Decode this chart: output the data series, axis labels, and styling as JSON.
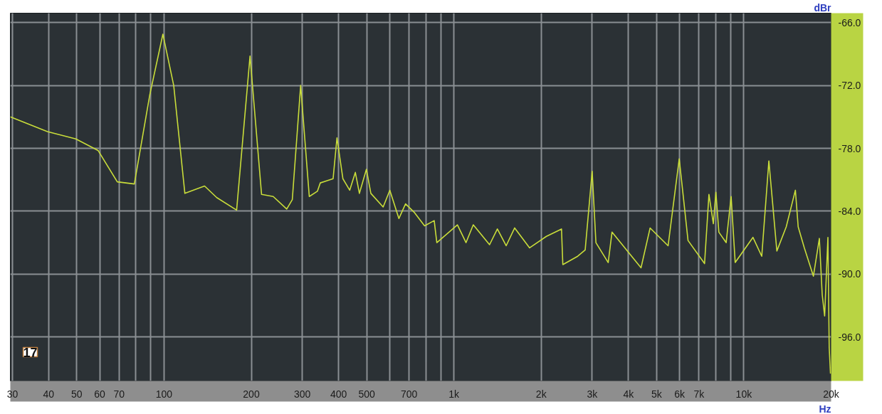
{
  "chart_data": {
    "type": "line",
    "xlabel": "Hz",
    "ylabel": "dBr",
    "annotations": [
      "17"
    ],
    "log": "x",
    "grid": true,
    "marker": "none",
    "line_style": "solid",
    "xlim": [
      29.5,
      20000
    ],
    "ylim": [
      -100.2,
      -65.1
    ],
    "xticks": [
      30,
      40,
      50,
      60,
      70,
      {
        "value": 80,
        "label": null
      },
      {
        "value": 90,
        "label": null
      },
      100,
      200,
      300,
      400,
      500,
      {
        "value": 600,
        "label": null
      },
      700,
      {
        "value": 800,
        "label": null
      },
      {
        "value": 900,
        "label": null
      },
      {
        "value": 1000,
        "label": "1k"
      },
      {
        "value": 2000,
        "label": "2k"
      },
      {
        "value": 3000,
        "label": "3k"
      },
      {
        "value": 4000,
        "label": "4k"
      },
      {
        "value": 5000,
        "label": "5k"
      },
      {
        "value": 6000,
        "label": "6k"
      },
      {
        "value": 7000,
        "label": "7k"
      },
      {
        "value": 8000,
        "label": null
      },
      {
        "value": 9000,
        "label": null
      },
      {
        "value": 10000,
        "label": "10k"
      },
      {
        "value": 20000,
        "label": "20k"
      }
    ],
    "yticks": [
      {
        "value": -66,
        "label": "-66.0"
      },
      {
        "value": -72,
        "label": "-72.0"
      },
      {
        "value": -78,
        "label": "-78.0"
      },
      {
        "value": -84,
        "label": "-84.0"
      },
      {
        "value": -90,
        "label": "-90.0"
      },
      {
        "value": -96,
        "label": "-96.0"
      }
    ],
    "series": [
      {
        "color": "#c9dd3a",
        "x": [
          29.5,
          39.6,
          49.6,
          59.2,
          69,
          79,
          89.3,
          99.1,
          108,
          118,
          138,
          152,
          178,
          198,
          217,
          238,
          265,
          277,
          296,
          317,
          338,
          346,
          383,
          395,
          414,
          437,
          457,
          472,
          499,
          517,
          570,
          601,
          646,
          681,
          729,
          792,
          855,
          873,
          1028,
          1101,
          1166,
          1327,
          1412,
          1514,
          1620,
          1824,
          2085,
          2350,
          2375,
          2673,
          2836,
          2998,
          3089,
          3405,
          3510,
          4420,
          4750,
          5480,
          5986,
          6420,
          7320,
          7580,
          7850,
          8010,
          8200,
          8690,
          9040,
          9337,
          10750,
          11530,
          12200,
          13000,
          14000,
          15060,
          15400,
          16170,
          17380,
          18220,
          18640,
          19000,
          19500,
          19700,
          19900
        ],
        "values": [
          -75.0,
          -76.4,
          -77.1,
          -78.2,
          -81.2,
          -81.4,
          -72.9,
          -67.1,
          -72.0,
          -82.3,
          -81.6,
          -82.7,
          -83.9,
          -69.2,
          -82.4,
          -82.6,
          -83.8,
          -82.9,
          -72.0,
          -82.6,
          -82.1,
          -81.3,
          -80.9,
          -77.0,
          -80.9,
          -82.0,
          -80.3,
          -82.3,
          -80.0,
          -82.3,
          -83.6,
          -82.0,
          -84.7,
          -83.3,
          -84.1,
          -85.4,
          -84.9,
          -87.0,
          -85.3,
          -87.0,
          -85.3,
          -87.2,
          -85.7,
          -87.3,
          -85.6,
          -87.5,
          -86.4,
          -85.7,
          -89.1,
          -88.3,
          -87.7,
          -80.2,
          -87.0,
          -88.9,
          -86.0,
          -89.4,
          -85.6,
          -87.3,
          -79.0,
          -86.8,
          -89.0,
          -82.4,
          -85.2,
          -82.2,
          -86.0,
          -87.0,
          -82.6,
          -88.9,
          -86.5,
          -88.3,
          -79.2,
          -87.8,
          -85.5,
          -82.0,
          -85.5,
          -87.5,
          -90.2,
          -86.6,
          -92.0,
          -94.0,
          -86.5,
          -97.0,
          -99.5
        ]
      }
    ]
  }
}
